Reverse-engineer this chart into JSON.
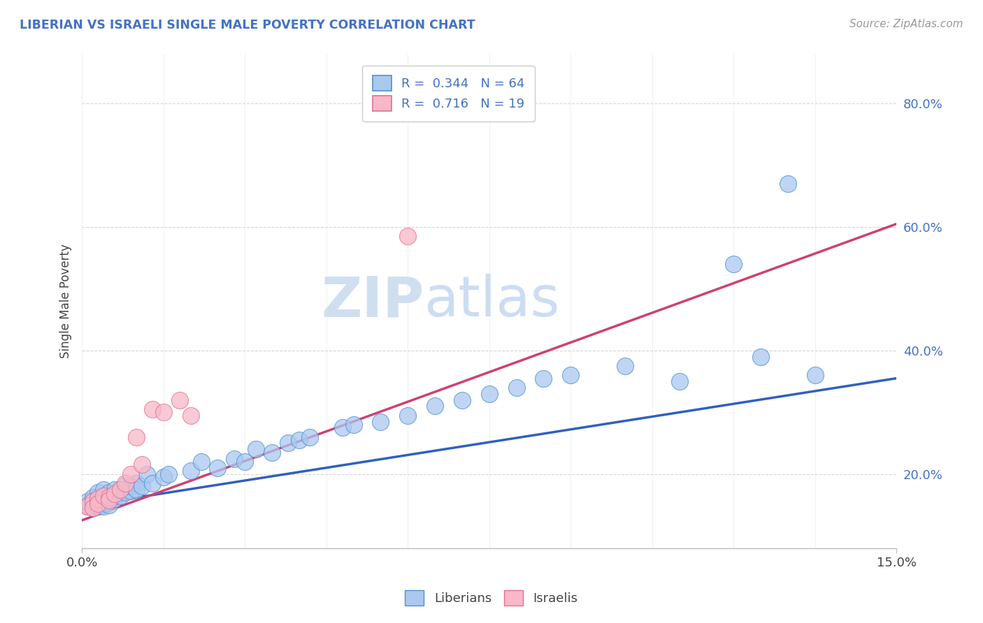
{
  "title": "LIBERIAN VS ISRAELI SINGLE MALE POVERTY CORRELATION CHART",
  "source_text": "Source: ZipAtlas.com",
  "ylabel": "Single Male Poverty",
  "xlim": [
    0.0,
    0.15
  ],
  "ylim": [
    0.08,
    0.88
  ],
  "xtick_labels": [
    "0.0%",
    "15.0%"
  ],
  "ytick_labels": [
    "20.0%",
    "40.0%",
    "60.0%",
    "80.0%"
  ],
  "ytick_values": [
    0.2,
    0.4,
    0.6,
    0.8
  ],
  "liberian_R": 0.344,
  "liberian_N": 64,
  "israeli_R": 0.716,
  "israeli_N": 19,
  "liberian_color": "#aac8f0",
  "liberian_edge_color": "#5090d0",
  "liberian_line_color": "#3060c0",
  "israeli_color": "#f8b8c8",
  "israeli_edge_color": "#e07090",
  "israeli_line_color": "#d04070",
  "text_color": "#4472c4",
  "title_color": "#4472c4",
  "watermark_zip": "ZIP",
  "watermark_atlas": "atlas",
  "watermark_color": "#d0dff0",
  "liberian_x": [
    0.001,
    0.001,
    0.001,
    0.002,
    0.002,
    0.002,
    0.002,
    0.003,
    0.003,
    0.003,
    0.003,
    0.003,
    0.004,
    0.004,
    0.004,
    0.004,
    0.004,
    0.005,
    0.005,
    0.005,
    0.005,
    0.006,
    0.006,
    0.006,
    0.006,
    0.007,
    0.007,
    0.008,
    0.008,
    0.009,
    0.009,
    0.01,
    0.01,
    0.011,
    0.012,
    0.013,
    0.015,
    0.016,
    0.02,
    0.022,
    0.025,
    0.028,
    0.03,
    0.032,
    0.035,
    0.038,
    0.04,
    0.042,
    0.048,
    0.05,
    0.055,
    0.06,
    0.065,
    0.07,
    0.075,
    0.08,
    0.085,
    0.09,
    0.1,
    0.11,
    0.12,
    0.125,
    0.13,
    0.135
  ],
  "liberian_y": [
    0.15,
    0.148,
    0.155,
    0.152,
    0.158,
    0.162,
    0.145,
    0.155,
    0.16,
    0.148,
    0.163,
    0.17,
    0.155,
    0.16,
    0.165,
    0.175,
    0.148,
    0.158,
    0.162,
    0.17,
    0.15,
    0.16,
    0.168,
    0.175,
    0.165,
    0.165,
    0.175,
    0.17,
    0.182,
    0.172,
    0.18,
    0.185,
    0.175,
    0.18,
    0.2,
    0.185,
    0.195,
    0.2,
    0.205,
    0.22,
    0.21,
    0.225,
    0.22,
    0.24,
    0.235,
    0.25,
    0.255,
    0.26,
    0.275,
    0.28,
    0.285,
    0.295,
    0.31,
    0.32,
    0.33,
    0.34,
    0.355,
    0.36,
    0.375,
    0.35,
    0.54,
    0.39,
    0.67,
    0.36
  ],
  "israeli_x": [
    0.001,
    0.002,
    0.002,
    0.003,
    0.003,
    0.004,
    0.005,
    0.005,
    0.006,
    0.007,
    0.008,
    0.009,
    0.01,
    0.011,
    0.013,
    0.015,
    0.018,
    0.02,
    0.06
  ],
  "israeli_y": [
    0.148,
    0.155,
    0.145,
    0.16,
    0.152,
    0.165,
    0.162,
    0.158,
    0.168,
    0.175,
    0.185,
    0.2,
    0.26,
    0.215,
    0.305,
    0.3,
    0.32,
    0.295,
    0.585
  ],
  "lib_line_x0": 0.0,
  "lib_line_y0": 0.148,
  "lib_line_x1": 0.15,
  "lib_line_y1": 0.355,
  "isr_line_x0": 0.0,
  "isr_line_y0": 0.125,
  "isr_line_x1": 0.15,
  "isr_line_y1": 0.605
}
